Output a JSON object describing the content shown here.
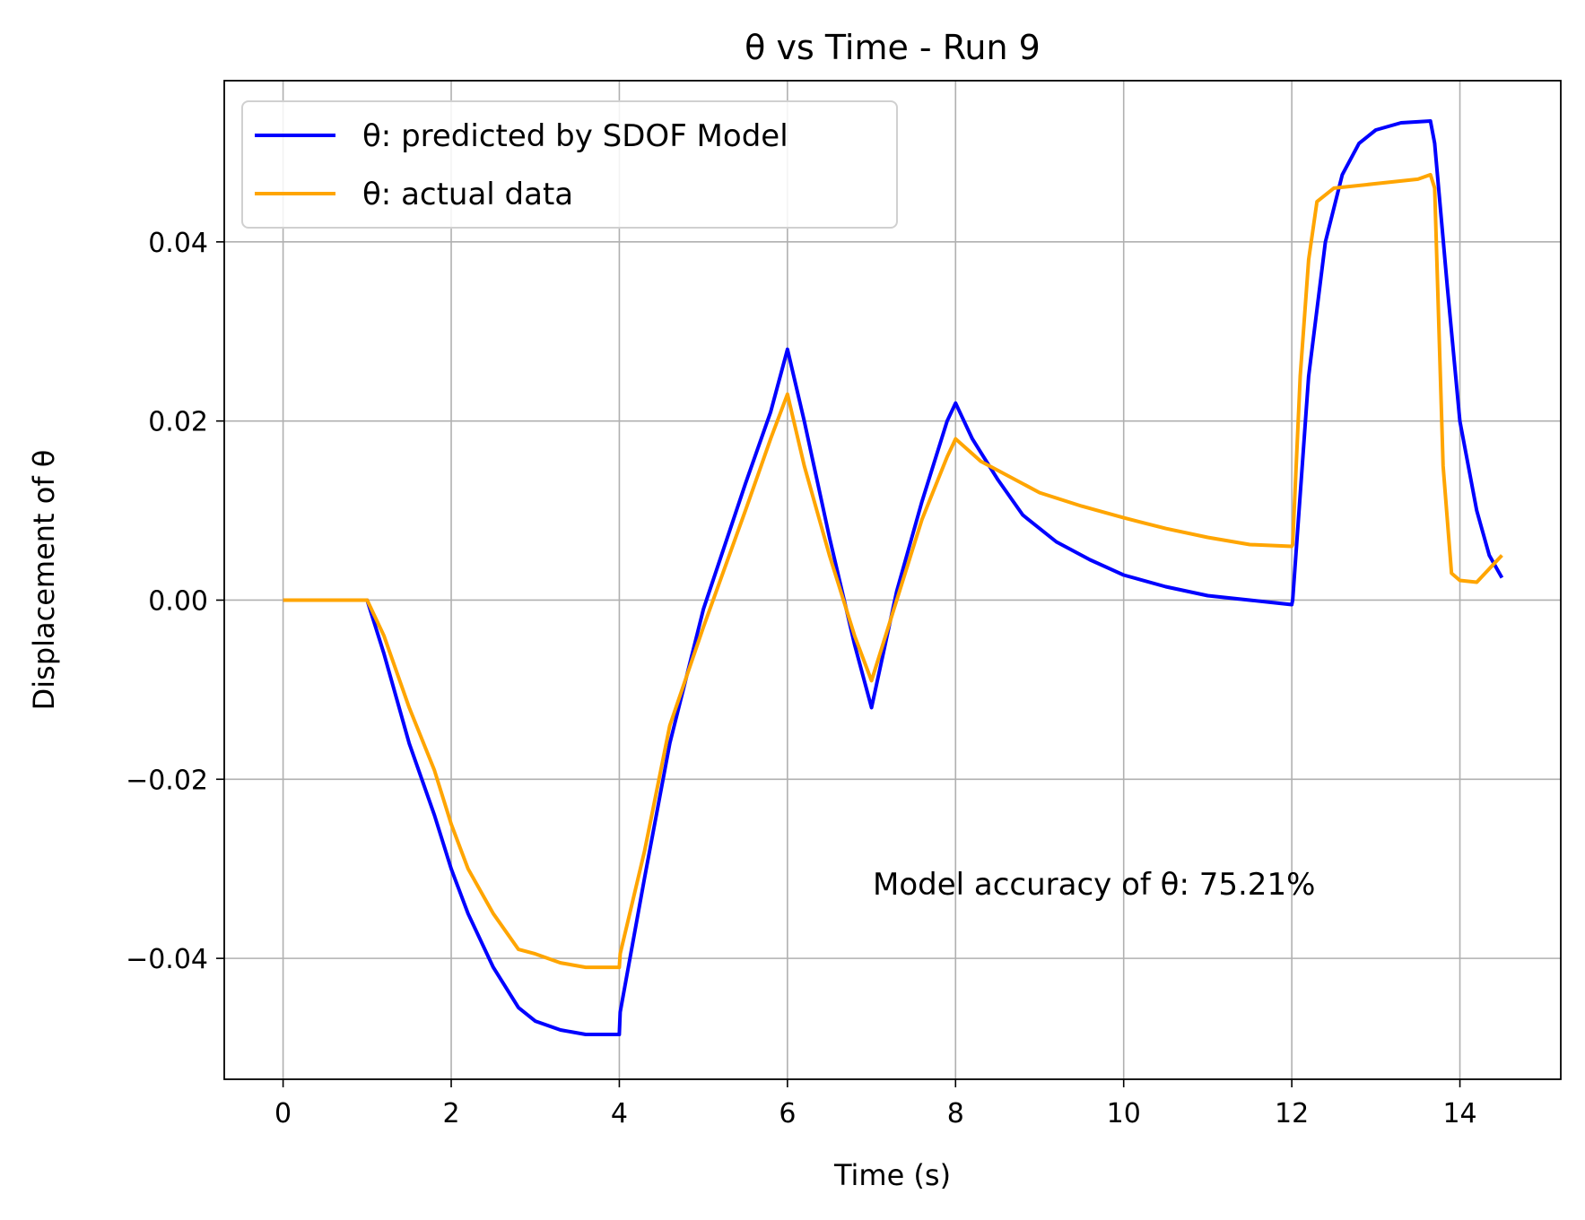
{
  "chart_data": {
    "type": "line",
    "title": "θ vs Time - Run 9",
    "xlabel": "Time (s)",
    "ylabel": "Displacement of θ",
    "xlim": [
      -0.7,
      15.2
    ],
    "ylim": [
      -0.0535,
      0.058
    ],
    "xticks": [
      0,
      2,
      4,
      6,
      8,
      10,
      12,
      14
    ],
    "xtick_labels": [
      "0",
      "2",
      "4",
      "6",
      "8",
      "10",
      "12",
      "14"
    ],
    "yticks": [
      -0.04,
      -0.02,
      0.0,
      0.02,
      0.04
    ],
    "ytick_labels": [
      "−0.04",
      "−0.02",
      "0.00",
      "0.02",
      "0.04"
    ],
    "grid": true,
    "legend_position": "upper-left",
    "annotation": "Model accuracy of θ: 75.21%",
    "series": [
      {
        "name": "θ: predicted by SDOF Model",
        "color": "#0000ff",
        "x": [
          0,
          0.5,
          1.0,
          1.2,
          1.5,
          1.8,
          2.0,
          2.2,
          2.5,
          2.8,
          3.0,
          3.3,
          3.6,
          4.0,
          4.01,
          4.3,
          4.6,
          5.0,
          5.5,
          5.8,
          6.0,
          6.2,
          6.5,
          6.8,
          7.0,
          7.3,
          7.6,
          7.9,
          8.0,
          8.2,
          8.5,
          8.8,
          9.2,
          9.6,
          10.0,
          10.5,
          11.0,
          11.5,
          12.0,
          12.01,
          12.2,
          12.4,
          12.6,
          12.8,
          13.0,
          13.3,
          13.65,
          13.7,
          13.85,
          14.0,
          14.2,
          14.35,
          14.5
        ],
        "y": [
          0.0,
          0.0,
          0.0,
          -0.006,
          -0.016,
          -0.024,
          -0.03,
          -0.035,
          -0.041,
          -0.0455,
          -0.047,
          -0.048,
          -0.0485,
          -0.0485,
          -0.046,
          -0.031,
          -0.016,
          -0.001,
          0.013,
          0.021,
          0.028,
          0.02,
          0.007,
          -0.005,
          -0.012,
          0.001,
          0.011,
          0.02,
          0.022,
          0.018,
          0.0135,
          0.0095,
          0.0065,
          0.0045,
          0.0028,
          0.0015,
          0.0005,
          0.0,
          -0.0005,
          0.0,
          0.025,
          0.04,
          0.0475,
          0.051,
          0.0525,
          0.0533,
          0.0535,
          0.051,
          0.035,
          0.02,
          0.01,
          0.005,
          0.0025
        ]
      },
      {
        "name": "θ: actual data",
        "color": "#ffa500",
        "x": [
          0,
          0.5,
          1.0,
          1.2,
          1.5,
          1.8,
          2.0,
          2.2,
          2.5,
          2.8,
          3.0,
          3.3,
          3.6,
          4.0,
          4.01,
          4.3,
          4.6,
          5.0,
          5.5,
          5.8,
          6.0,
          6.2,
          6.5,
          6.8,
          7.0,
          7.3,
          7.6,
          7.9,
          8.0,
          8.3,
          8.7,
          9.0,
          9.5,
          10.0,
          10.5,
          11.0,
          11.5,
          12.0,
          12.01,
          12.1,
          12.2,
          12.3,
          12.5,
          13.0,
          13.5,
          13.65,
          13.7,
          13.8,
          13.9,
          14.0,
          14.2,
          14.4,
          14.5
        ],
        "y": [
          0.0,
          0.0,
          0.0,
          -0.004,
          -0.012,
          -0.019,
          -0.025,
          -0.03,
          -0.035,
          -0.039,
          -0.0395,
          -0.0405,
          -0.041,
          -0.041,
          -0.0395,
          -0.028,
          -0.014,
          -0.003,
          0.01,
          0.018,
          0.023,
          0.015,
          0.005,
          -0.004,
          -0.009,
          0.0,
          0.009,
          0.016,
          0.018,
          0.0155,
          0.0135,
          0.012,
          0.0105,
          0.0092,
          0.008,
          0.007,
          0.0062,
          0.006,
          0.0062,
          0.025,
          0.038,
          0.0445,
          0.046,
          0.0465,
          0.047,
          0.0475,
          0.046,
          0.015,
          0.003,
          0.0022,
          0.002,
          0.004,
          0.005
        ]
      }
    ]
  }
}
